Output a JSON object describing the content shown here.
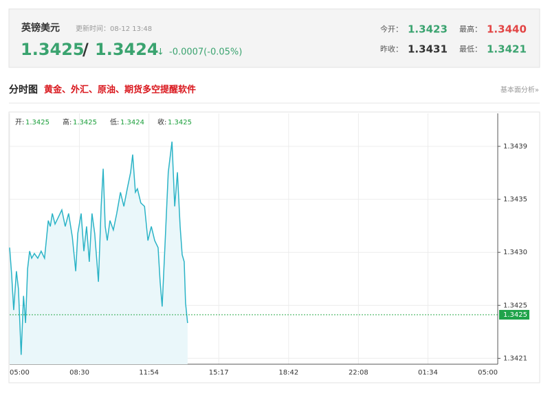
{
  "header": {
    "name": "英镑美元",
    "update_time": "更新时间：08-12 13:48",
    "bid": "1.3425",
    "separator": "/",
    "ask": "1.3424",
    "arrow": "↓",
    "change": "-0.0007(-0.05%)",
    "stats": [
      {
        "label": "今开：",
        "value": "1.3423"
      },
      {
        "label": "最高：",
        "value": "1.3440"
      },
      {
        "label": "昨收：",
        "value": "1.3431"
      },
      {
        "label": "最低：",
        "value": "1.3421"
      }
    ]
  },
  "section": {
    "title": "分时图",
    "promo": "黄金、外汇、原油、期货多空提醒软件",
    "link": "基本面分析»"
  },
  "ohlc": [
    {
      "label": "开:",
      "value": "1.3425"
    },
    {
      "label": "高:",
      "value": "1.3425"
    },
    {
      "label": "低:",
      "value": "1.3424"
    },
    {
      "label": "收:",
      "value": "1.3425"
    }
  ],
  "chart_data": {
    "type": "line",
    "color": "#2ab3c6",
    "fill": "#eaf7fa",
    "grid": true,
    "x": [
      0,
      6,
      12,
      20,
      26,
      34,
      41,
      47,
      53,
      59,
      65,
      73,
      83,
      93,
      103,
      114,
      120,
      126,
      134,
      144,
      154,
      164,
      174,
      185,
      195,
      201,
      211,
      219,
      227,
      235,
      243,
      251,
      262,
      270,
      276,
      282,
      288,
      296,
      306,
      316,
      327,
      337,
      347,
      357,
      363,
      371,
      377,
      387,
      398,
      408,
      418,
      428,
      438,
      444,
      450,
      458,
      468,
      479,
      487,
      495,
      503,
      509,
      515,
      519,
      525
    ],
    "values": [
      1.34304,
      1.34281,
      1.34251,
      1.34284,
      1.34269,
      1.34213,
      1.34263,
      1.3424,
      1.34286,
      1.34301,
      1.34295,
      1.34299,
      1.34295,
      1.34301,
      1.34295,
      1.34327,
      1.34322,
      1.34333,
      1.34324,
      1.3433,
      1.34336,
      1.34322,
      1.34333,
      1.34313,
      1.34284,
      1.34316,
      1.34333,
      1.34301,
      1.34322,
      1.34292,
      1.34333,
      1.34316,
      1.34275,
      1.34339,
      1.34371,
      1.34322,
      1.3431,
      1.34327,
      1.34319,
      1.34333,
      1.34351,
      1.34339,
      1.34354,
      1.34368,
      1.34383,
      1.34351,
      1.34354,
      1.34342,
      1.34339,
      1.3431,
      1.34322,
      1.3431,
      1.34304,
      1.34275,
      1.34254,
      1.34304,
      1.34368,
      1.34394,
      1.34339,
      1.34368,
      1.34322,
      1.34298,
      1.34292,
      1.34257,
      1.3424
    ],
    "xlim": [
      0,
      1440
    ],
    "xticks": [
      {
        "value": 0,
        "label": "05:00"
      },
      {
        "value": 206,
        "label": "08:30"
      },
      {
        "value": 411,
        "label": "11:54"
      },
      {
        "value": 617,
        "label": "15:17"
      },
      {
        "value": 823,
        "label": "18:42"
      },
      {
        "value": 1029,
        "label": "22:08"
      },
      {
        "value": 1234,
        "label": "01:34"
      },
      {
        "value": 1440,
        "label": "05:00"
      }
    ],
    "ylim": [
      1.34205,
      1.34418
    ],
    "yticks": [
      {
        "value": 1.3421,
        "label": "1.3421"
      },
      {
        "value": 1.34255,
        "label": "1.3425"
      },
      {
        "value": 1.343,
        "label": "1.3430"
      },
      {
        "value": 1.34345,
        "label": "1.3435"
      },
      {
        "value": 1.3439,
        "label": "1.3439"
      }
    ],
    "last_price": {
      "value": 1.34247,
      "label": "1.3425"
    }
  }
}
